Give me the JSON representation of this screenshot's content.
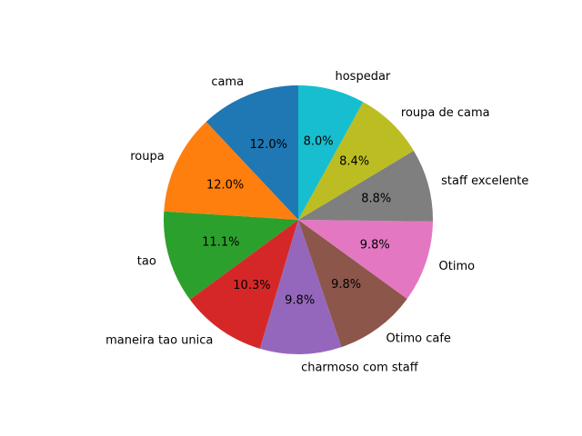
{
  "chart_data": {
    "type": "pie",
    "title": "",
    "start_angle_deg": 90,
    "direction": "counterclockwise",
    "categories": [
      "cama",
      "roupa",
      "tao",
      "maneira tao unica",
      "charmoso com staff",
      "Otimo cafe",
      "Otimo",
      "staff excelente",
      "roupa de cama",
      "hospedar"
    ],
    "values": [
      12.0,
      12.0,
      11.1,
      10.3,
      9.8,
      9.8,
      9.8,
      8.8,
      8.4,
      8.0
    ],
    "value_labels": [
      "12.0%",
      "12.0%",
      "11.1%",
      "10.3%",
      "9.8%",
      "9.8%",
      "9.8%",
      "8.8%",
      "8.4%",
      "8.0%"
    ],
    "colors": [
      "#1f77b4",
      "#ff7f0e",
      "#2ca02c",
      "#d62728",
      "#9467bd",
      "#8c564b",
      "#e377c2",
      "#7f7f7f",
      "#bcbd22",
      "#17becf"
    ]
  }
}
